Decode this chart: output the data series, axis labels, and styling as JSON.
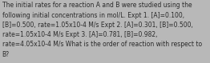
{
  "lines": [
    "The initial rates for a reaction A and B were studied using the",
    "following initial concentrations in mol/L. Expt 1. [A]=0.100,",
    "[B]=0.500, rate=1.05x10-4 M/s Expt 2. [A]=0.301, [B]=0.500,",
    "rate=1.05x10-4 M/s Expt 3. [A]=0.781, [B]=0.982,",
    "rate=4.05x10-4 M/s What is the order of reaction with respect to",
    "B?"
  ],
  "bg_color": "#b8b8b8",
  "text_color": "#2a2a2a",
  "font_size": 5.5,
  "fig_width": 2.62,
  "fig_height": 0.79,
  "dpi": 100
}
